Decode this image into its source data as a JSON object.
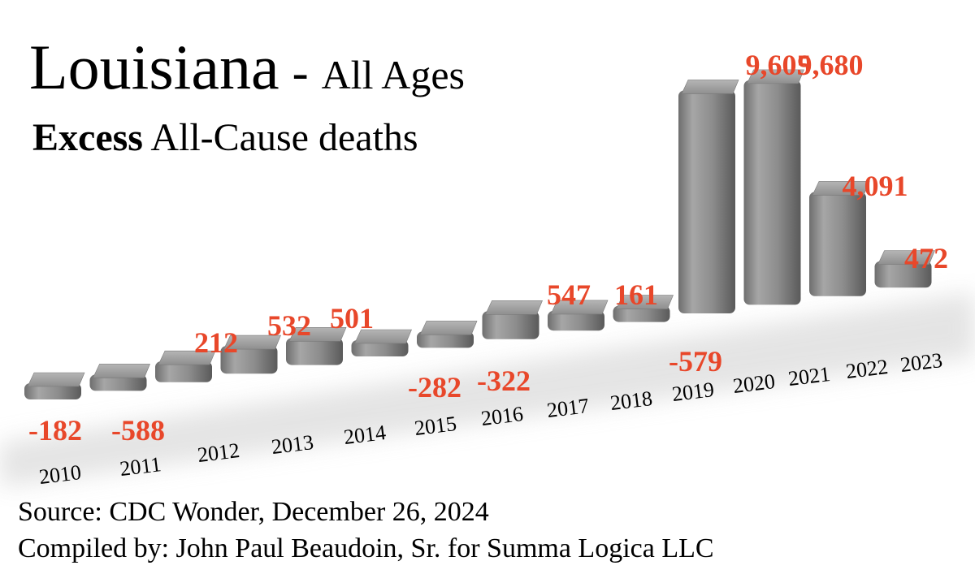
{
  "header": {
    "title_main": "Louisiana",
    "title_sep": "-",
    "title_sub": "All Ages",
    "subtitle_bold": "Excess",
    "subtitle_rest": "All-Cause deaths"
  },
  "footer": {
    "source": "Source:  CDC Wonder, December 26, 2024",
    "credit": "Compiled by:  John Paul Beaudoin, Sr. for Summa Logica LLC"
  },
  "chart_data": {
    "type": "bar",
    "title": "Louisiana - All Ages",
    "subtitle": "Excess All-Cause deaths",
    "categories": [
      "2010",
      "2011",
      "2012",
      "2013",
      "2014",
      "2015",
      "2016",
      "2017",
      "2018",
      "2019",
      "2020",
      "2021",
      "2022",
      "2023"
    ],
    "values": [
      -182,
      -588,
      212,
      532,
      501,
      -282,
      -322,
      547,
      161,
      -579,
      9605,
      9680,
      4091,
      472
    ],
    "labels": [
      "-182",
      "-588",
      "212",
      "532",
      "501",
      "-282",
      "-322",
      "547",
      "161",
      "-579",
      "9,605",
      "9,680",
      "4,091",
      "472"
    ],
    "bar_color": "#8a8a8a",
    "label_color": "#e8472a",
    "style": "3d perspective"
  }
}
